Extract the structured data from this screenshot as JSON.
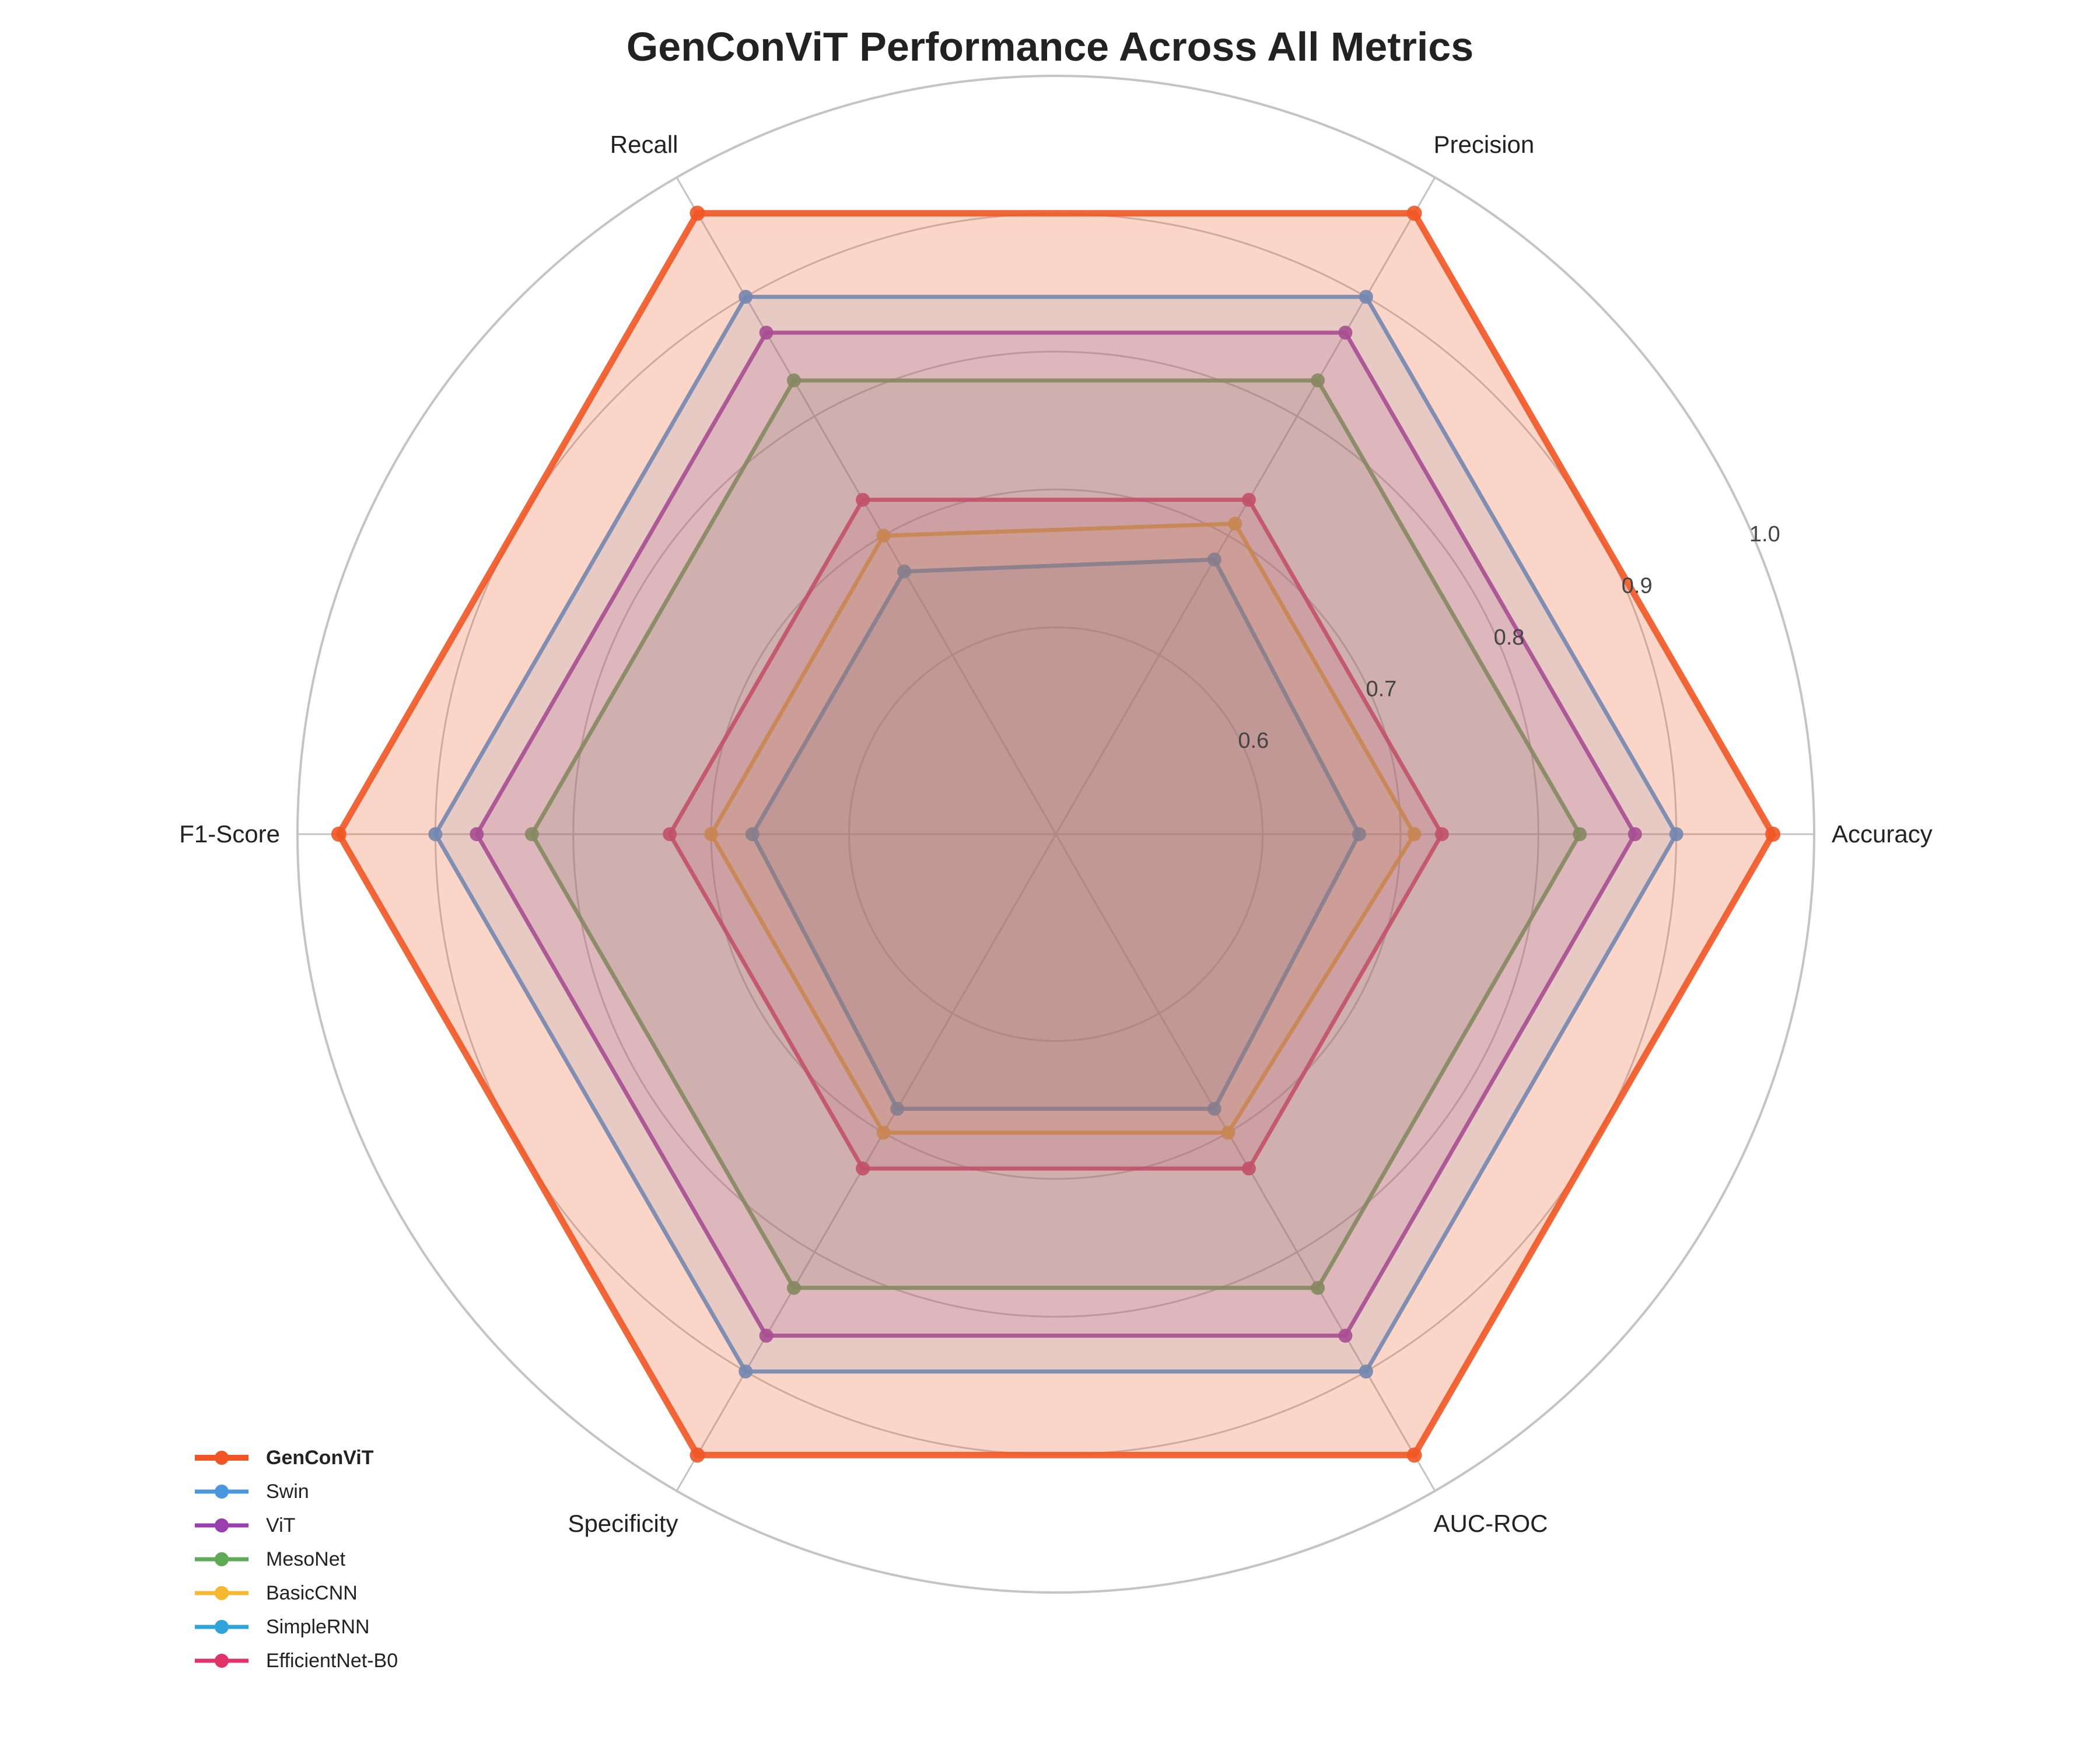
{
  "chart_data": {
    "type": "radar",
    "title": "GenConViT Performance Across All Metrics",
    "axes": [
      "Accuracy",
      "Precision",
      "Recall",
      "F1-Score",
      "Specificity",
      "AUC-ROC"
    ],
    "rlim": [
      0.45,
      1.0
    ],
    "rticks": [
      0.6,
      0.7,
      0.8,
      0.9,
      1.0
    ],
    "rtick_labels": [
      "0.6",
      "0.7",
      "0.8",
      "0.9",
      "1.0"
    ],
    "grid": true,
    "legend_position": "bottom-left",
    "series": [
      {
        "name": "SimpleRNN",
        "color": "#2ea3dc",
        "values": [
          0.67,
          0.68,
          0.67,
          0.67,
          0.68,
          0.68
        ]
      },
      {
        "name": "BasicCNN",
        "color": "#f5b82e",
        "values": [
          0.71,
          0.71,
          0.7,
          0.7,
          0.7,
          0.7
        ]
      },
      {
        "name": "EfficientNet-B0",
        "color": "#e0336a",
        "values": [
          0.73,
          0.73,
          0.73,
          0.73,
          0.73,
          0.73
        ]
      },
      {
        "name": "MesoNet",
        "color": "#5faa56",
        "values": [
          0.83,
          0.83,
          0.83,
          0.83,
          0.83,
          0.83
        ]
      },
      {
        "name": "ViT",
        "color": "#9b3eb0",
        "values": [
          0.87,
          0.87,
          0.87,
          0.87,
          0.87,
          0.87
        ]
      },
      {
        "name": "Swin",
        "color": "#4a97de",
        "values": [
          0.9,
          0.9,
          0.9,
          0.9,
          0.9,
          0.9
        ]
      },
      {
        "name": "GenConViT",
        "color": "#f05623",
        "values": [
          0.97,
          0.97,
          0.97,
          0.97,
          0.97,
          0.97
        ]
      }
    ],
    "legend_order": [
      "GenConViT",
      "Swin",
      "ViT",
      "MesoNet",
      "BasicCNN",
      "SimpleRNN",
      "EfficientNet-B0"
    ],
    "highlight": "GenConViT"
  }
}
